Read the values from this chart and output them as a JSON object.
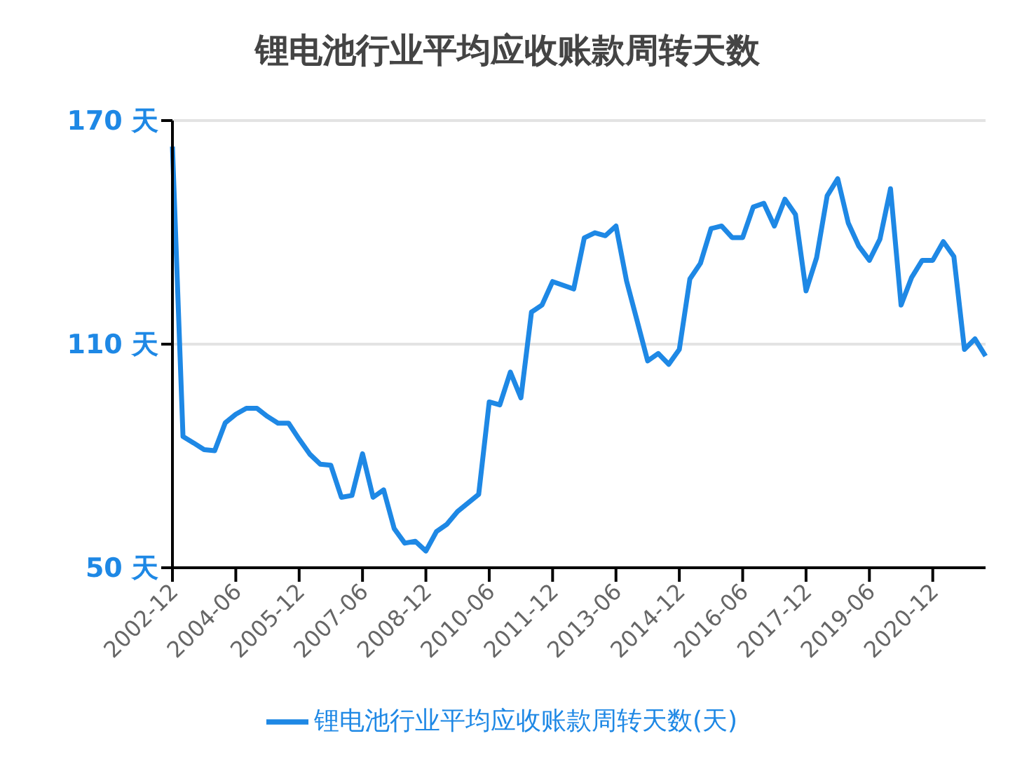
{
  "chart_data": {
    "type": "line",
    "title": "锂电池行业平均应收账款周转天数",
    "categories": [
      "2002-12",
      null,
      null,
      null,
      null,
      null,
      "2004-06",
      null,
      null,
      null,
      null,
      null,
      "2005-12",
      null,
      null,
      null,
      null,
      null,
      "2007-06",
      null,
      null,
      null,
      null,
      null,
      "2008-12",
      null,
      null,
      null,
      null,
      null,
      "2010-06",
      null,
      null,
      null,
      null,
      null,
      "2011-12",
      null,
      null,
      null,
      null,
      null,
      "2013-06",
      null,
      null,
      null,
      null,
      null,
      "2014-12",
      null,
      null,
      null,
      null,
      null,
      "2016-06",
      null,
      null,
      null,
      null,
      null,
      "2017-12",
      null,
      null,
      null,
      null,
      null,
      "2019-06",
      null,
      null,
      null,
      null,
      null,
      "2020-12",
      null,
      null,
      null,
      null,
      null
    ],
    "series": [
      {
        "name": "锂电池行业平均应收账款周转天数(天)",
        "color": "#1e88e5",
        "values": [
          163,
          85.2,
          83.5,
          81.7,
          81.4,
          88.9,
          91.2,
          92.8,
          92.8,
          90.6,
          88.8,
          88.8,
          84.5,
          80.5,
          77.8,
          77.5,
          68.9,
          69.4,
          80.6,
          68.9,
          70.9,
          60.5,
          56.6,
          57.1,
          54.5,
          59.7,
          61.7,
          65.1,
          67.4,
          69.7,
          94.5,
          93.7,
          102.5,
          95.6,
          118.6,
          120.5,
          126.8,
          125.8,
          124.8,
          138.5,
          139.9,
          139.1,
          141.7,
          127,
          116.3,
          105.5,
          107.5,
          104.6,
          108.6,
          127.5,
          131.7,
          141,
          141.7,
          138.6,
          138.6,
          146.8,
          147.8,
          141.7,
          148.9,
          144.8,
          124.3,
          133.2,
          149.8,
          154.4,
          142.5,
          136.3,
          132.5,
          138.2,
          151.7,
          120.5,
          127.9,
          132.5,
          132.5,
          137.5,
          133.5,
          108.6,
          111.4,
          106.8
        ]
      }
    ],
    "ylim": [
      50,
      170
    ],
    "yticks": [
      {
        "value": 50,
        "label": "50 天"
      },
      {
        "value": 110,
        "label": "110 天"
      },
      {
        "value": 170,
        "label": "170 天"
      }
    ],
    "grid": "y",
    "legend": "bottom",
    "marker": "none",
    "line_style": "solid"
  }
}
